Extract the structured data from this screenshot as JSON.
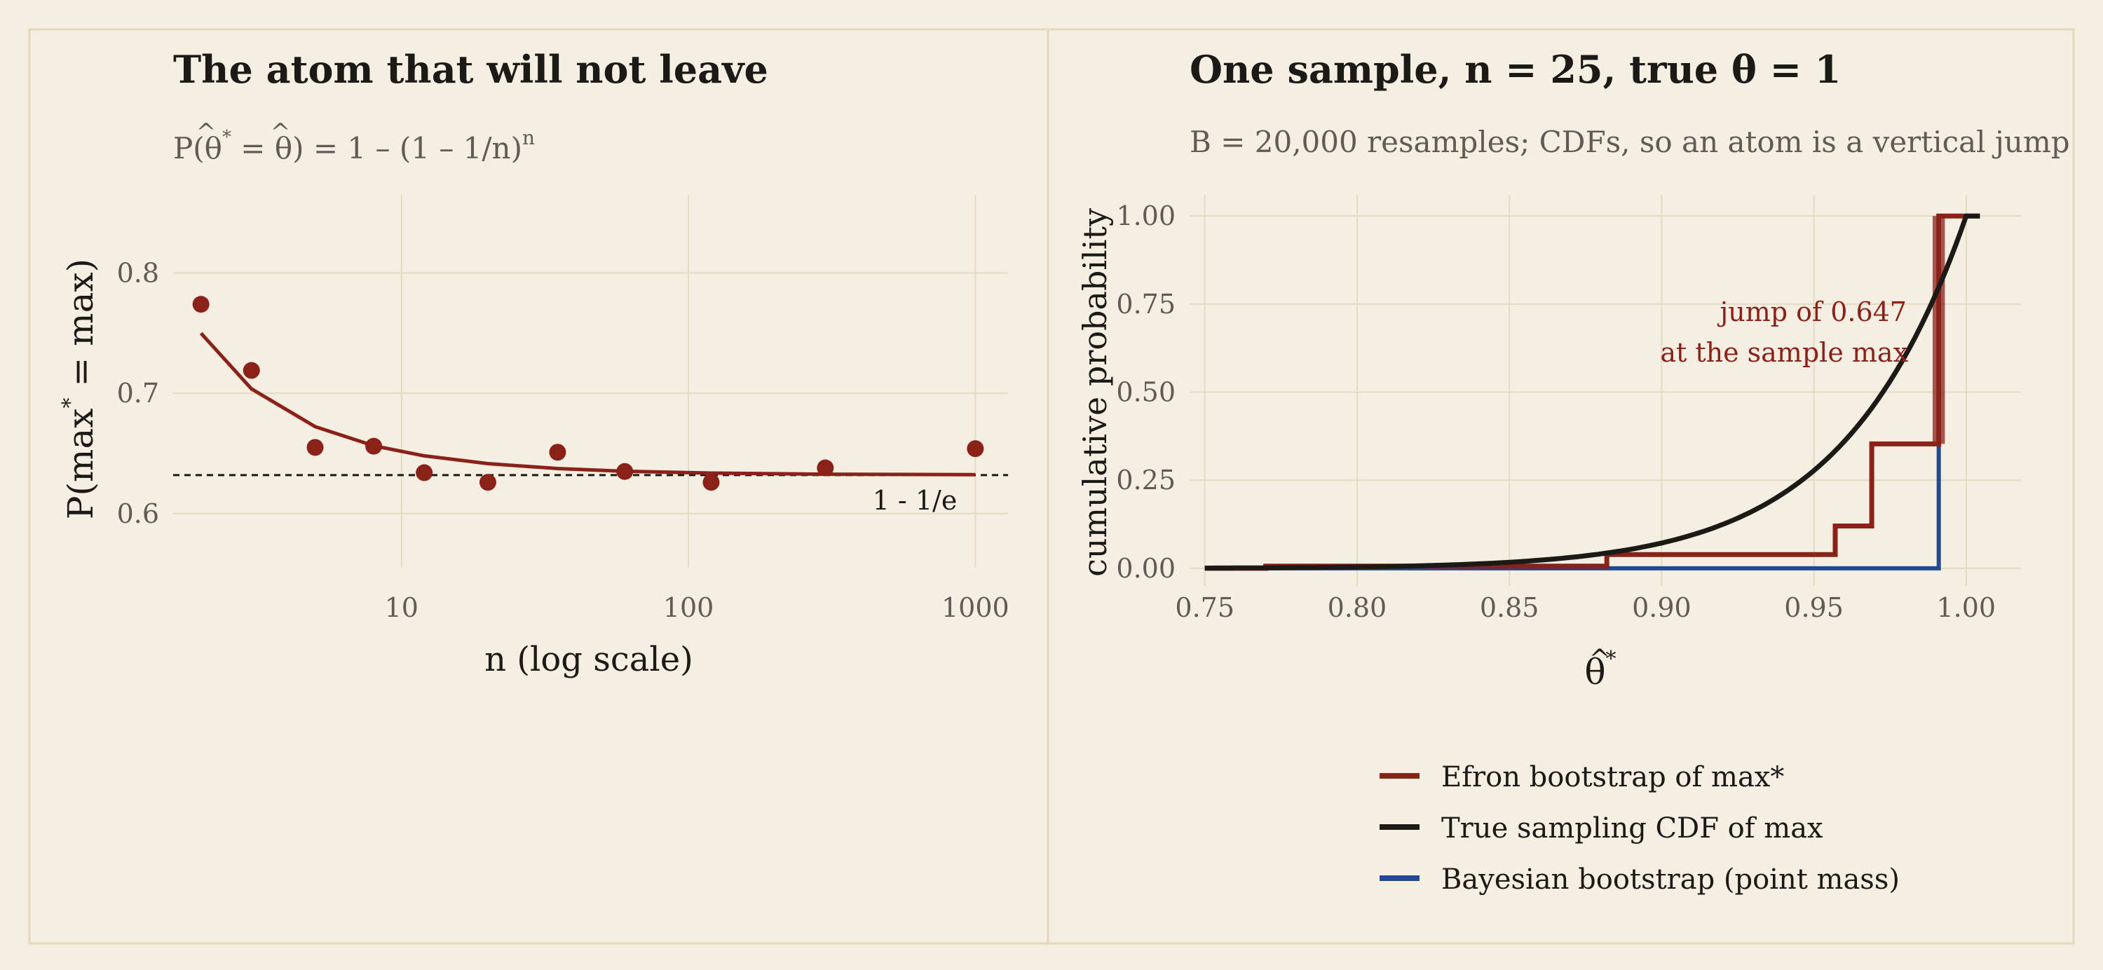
{
  "colors": {
    "background": "#f3eee1",
    "panel_background": "#f4efe2",
    "frame": "#e2d8bd",
    "grid": "#e3dbc2",
    "text": "#1c1a17",
    "subtext": "#5f5b55",
    "efron": "#8b2219",
    "true_cdf": "#1c1a17",
    "bayes": "#23498f"
  },
  "left": {
    "title": "The atom that will not leave",
    "subtitle_prefix": "P(",
    "subtitle_theta_star": "θ",
    "subtitle_star": "*",
    "subtitle_eq": " = ",
    "subtitle_theta": "θ",
    "subtitle_rest": ") = 1 – (1 – 1/n)",
    "subtitle_exp": "n",
    "ylabel_main": "P(max",
    "ylabel_star": "*",
    "ylabel_rest": " = max)",
    "xlabel": "n (log scale)",
    "reference_label": "1 - 1/e"
  },
  "right": {
    "title": "One sample, n = 25, true θ = 1",
    "subtitle": "B = 20,000 resamples; CDFs, so an atom is a vertical jump",
    "ylabel": "cumulative probability",
    "xlabel_symbol": "θ",
    "xlabel_star": "*",
    "annotation_line1": "jump of 0.647",
    "annotation_line2": "at the sample max"
  },
  "legend": {
    "items": [
      {
        "label": "Efron bootstrap of max*",
        "color_key": "efron"
      },
      {
        "label": "True sampling CDF of max",
        "color_key": "true_cdf"
      },
      {
        "label": "Bayesian bootstrap (point mass)",
        "color_key": "bayes"
      }
    ]
  },
  "chart_data": [
    {
      "type": "scatter",
      "title": "The atom that will not leave",
      "subtitle": "P(θ̂* = θ̂) = 1 – (1 – 1/n)^n",
      "xlabel": "n (log scale)",
      "ylabel": "P(max* = max)",
      "x_scale": "log",
      "xlim": [
        1.6,
        1300
      ],
      "ylim": [
        0.555,
        0.865
      ],
      "x_ticks": [
        10,
        100,
        1000
      ],
      "y_ticks": [
        0.6,
        0.7,
        0.8
      ],
      "x_tick_labels": [
        "10",
        "100",
        "1000"
      ],
      "y_tick_labels": [
        "0.6",
        "0.7",
        "0.8"
      ],
      "grid": true,
      "points": [
        {
          "x": 2,
          "y": 0.774
        },
        {
          "x": 3,
          "y": 0.719
        },
        {
          "x": 5,
          "y": 0.655
        },
        {
          "x": 8,
          "y": 0.656
        },
        {
          "x": 12,
          "y": 0.634
        },
        {
          "x": 20,
          "y": 0.626
        },
        {
          "x": 35,
          "y": 0.651
        },
        {
          "x": 60,
          "y": 0.635
        },
        {
          "x": 120,
          "y": 0.626
        },
        {
          "x": 300,
          "y": 0.638
        },
        {
          "x": 1000,
          "y": 0.654
        }
      ],
      "curve": "1 - (1 - 1/n)^n",
      "curve_x": [
        2,
        3,
        5,
        8,
        12,
        20,
        35,
        60,
        120,
        300,
        1000
      ],
      "reference_line": {
        "y": 0.632,
        "label": "1 - 1/e",
        "style": "dashed"
      }
    },
    {
      "type": "line",
      "title": "One sample, n = 25, true θ = 1",
      "subtitle": "B = 20,000 resamples; CDFs, so an atom is a vertical jump",
      "xlabel": "θ̂*",
      "ylabel": "cumulative probability",
      "xlim": [
        0.745,
        1.018
      ],
      "ylim": [
        -0.05,
        1.06
      ],
      "x_ticks": [
        0.75,
        0.8,
        0.85,
        0.9,
        0.95,
        1.0
      ],
      "y_ticks": [
        0,
        0.25,
        0.5,
        0.75,
        1.0
      ],
      "x_tick_labels": [
        "0.75",
        "0.80",
        "0.85",
        "0.90",
        "0.95",
        "1.00"
      ],
      "y_tick_labels": [
        "0.00",
        "0.25",
        "0.50",
        "0.75",
        "1.00"
      ],
      "grid": true,
      "legend_position": "bottom",
      "series": [
        {
          "name": "Efron bootstrap of max*",
          "step": true,
          "x": [
            0.75,
            0.77,
            0.882,
            0.957,
            0.969,
            0.991,
            1.0045
          ],
          "y": [
            0.0,
            0.006,
            0.039,
            0.12,
            0.353,
            1.0,
            1.0
          ]
        },
        {
          "name": "True sampling CDF of max",
          "function": "x^25",
          "x_range": [
            0.75,
            1.0
          ],
          "tail": {
            "x": [
              1.0,
              1.0045
            ],
            "y": [
              1.0,
              1.0
            ]
          }
        },
        {
          "name": "Bayesian bootstrap (point mass)",
          "step": true,
          "x": [
            0.75,
            0.991
          ],
          "y": [
            0.0,
            1.0
          ]
        }
      ],
      "annotation": {
        "text": "jump of 0.647 at the sample max",
        "x": 0.991,
        "y": 0.65
      }
    }
  ]
}
